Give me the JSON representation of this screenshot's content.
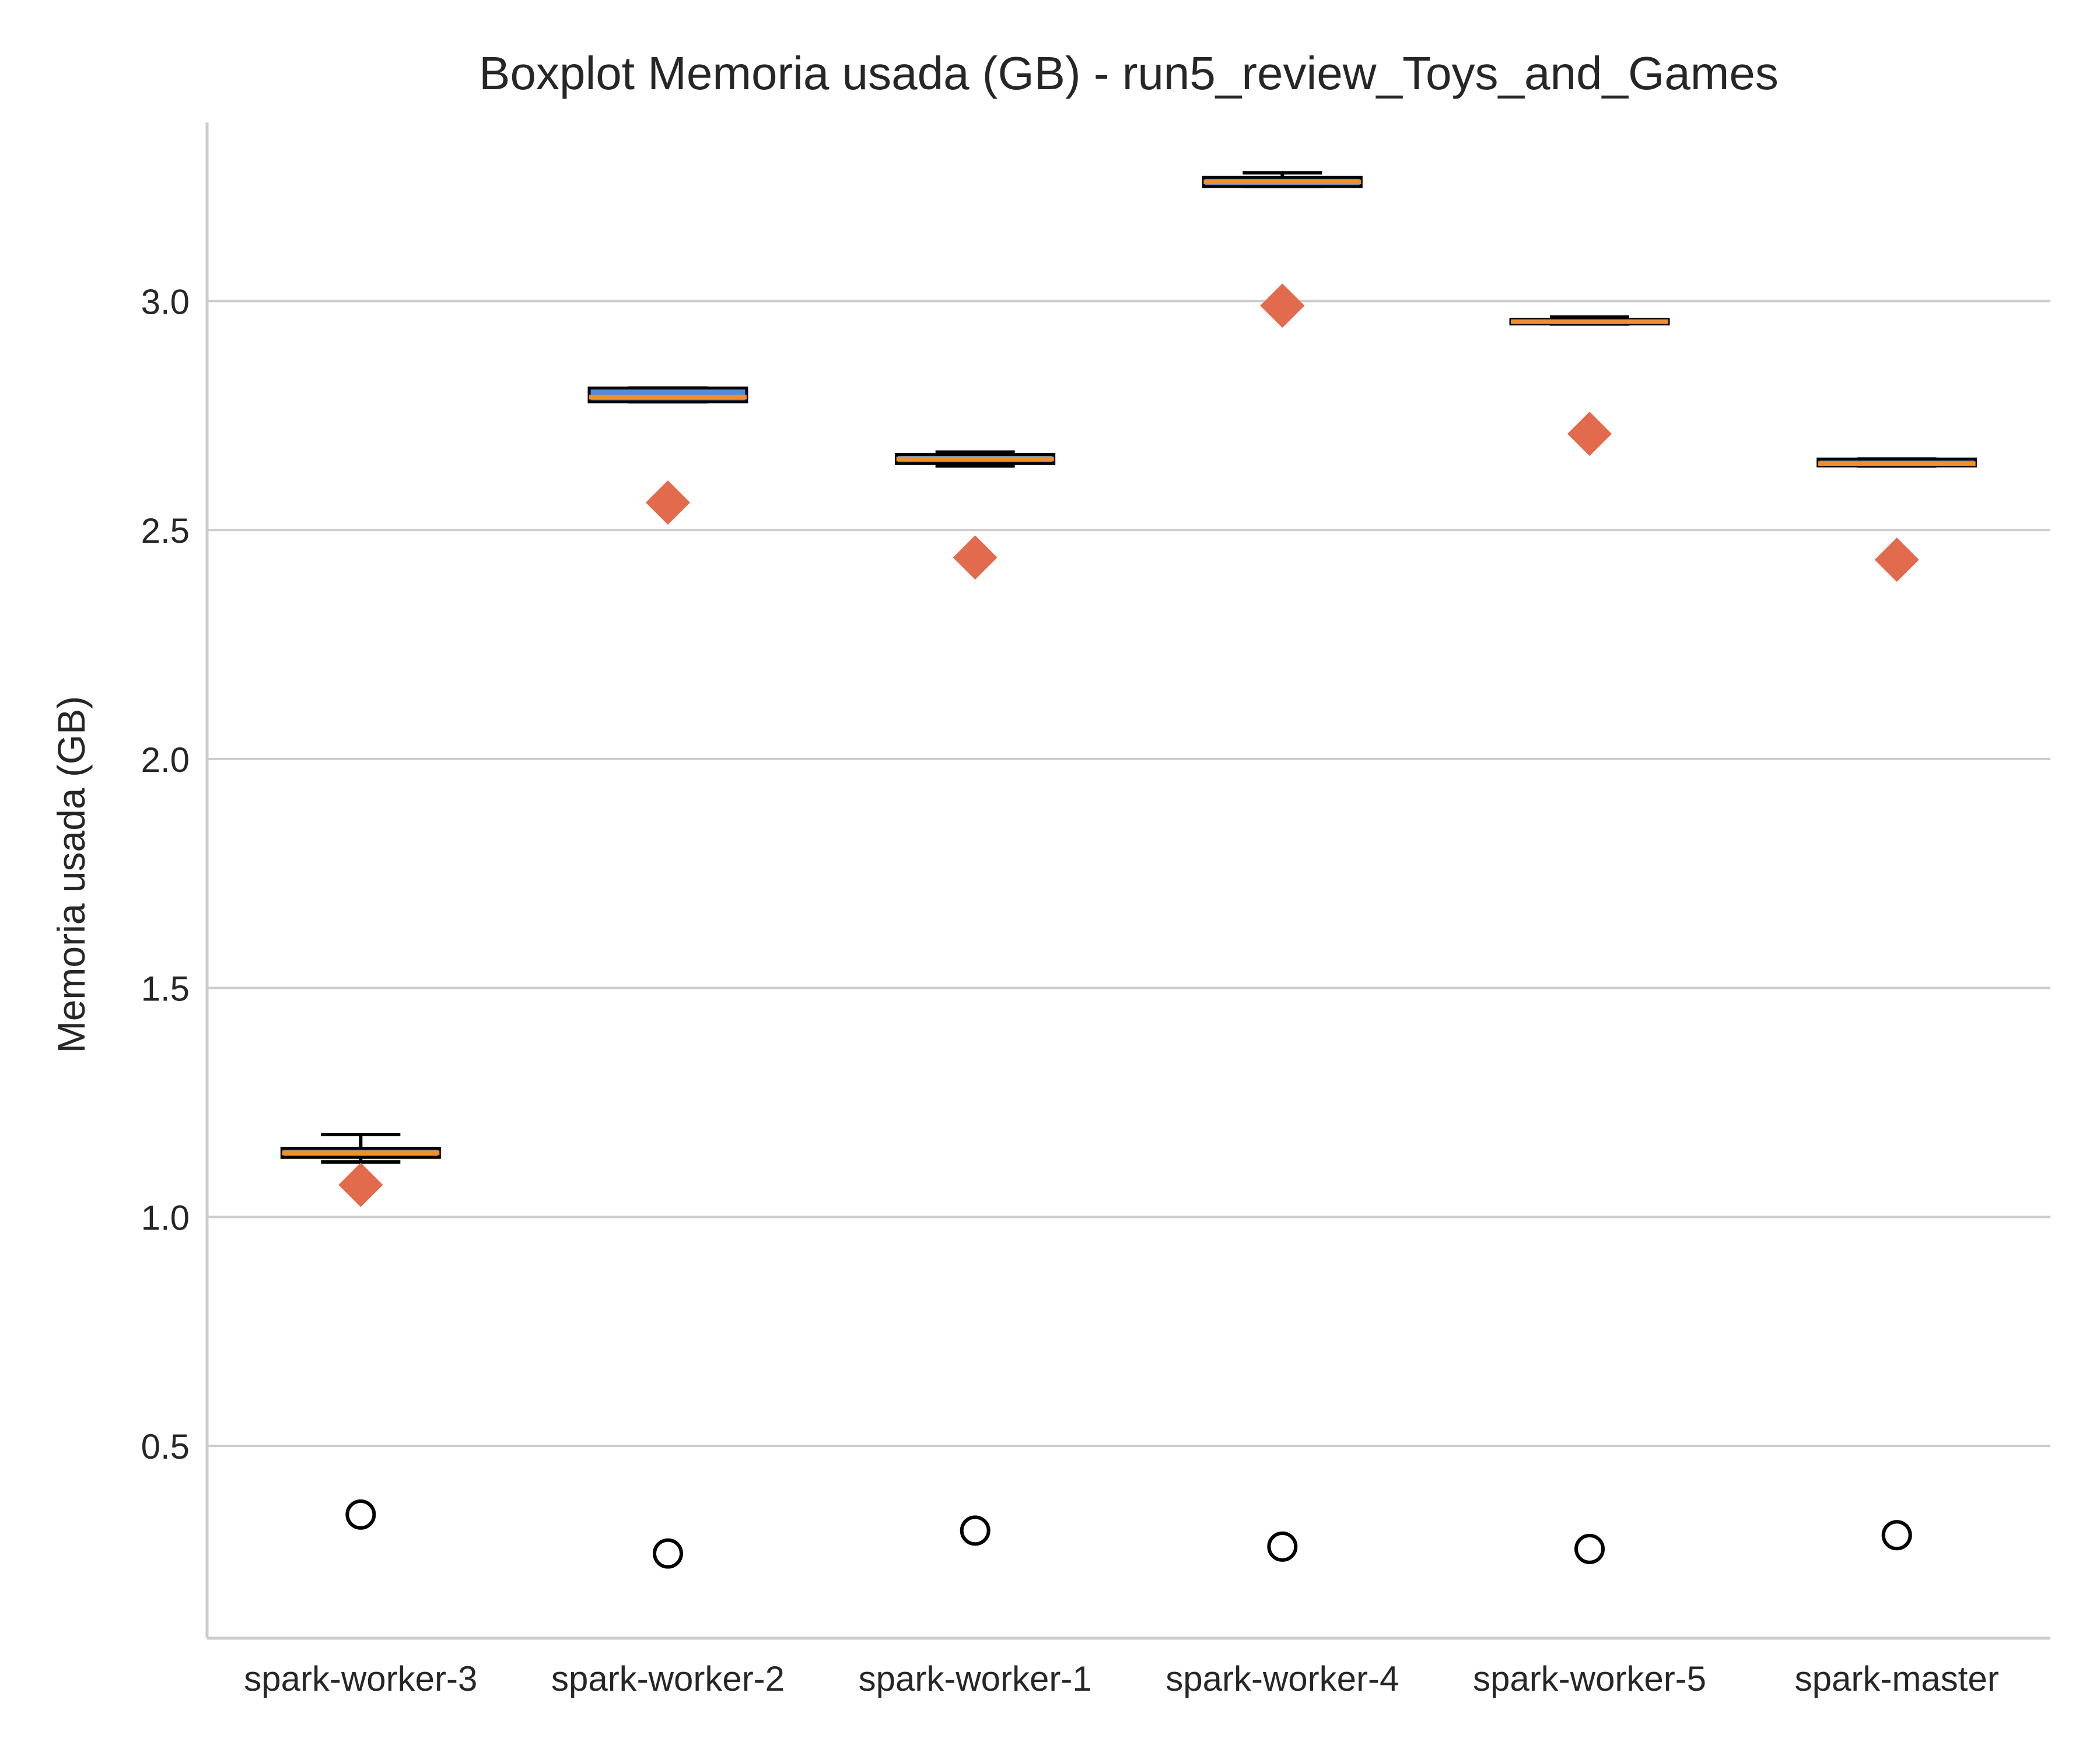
{
  "chart_data": {
    "type": "boxplot",
    "title": "Boxplot Memoria usada (GB) - run5_review_Toys_and_Games",
    "xlabel": "",
    "ylabel": "Memoria usada (GB)",
    "ylim": [
      0.08,
      3.39
    ],
    "yticks": [
      "0.5",
      "1.0",
      "1.5",
      "2.0",
      "2.5",
      "3.0"
    ],
    "grid": "horizontal",
    "categories": [
      "spark-worker-3",
      "spark-worker-2",
      "spark-worker-1",
      "spark-worker-4",
      "spark-worker-5",
      "spark-master"
    ],
    "boxes": [
      {
        "whisker_low": 1.12,
        "q1": 1.13,
        "median": 1.14,
        "q3": 1.15,
        "whisker_high": 1.18,
        "mean": 1.07,
        "outliers": [
          0.35
        ]
      },
      {
        "whisker_low": 2.78,
        "q1": 2.78,
        "median": 2.79,
        "q3": 2.81,
        "whisker_high": 2.81,
        "mean": 2.56,
        "outliers": [
          0.265
        ]
      },
      {
        "whisker_low": 2.64,
        "q1": 2.645,
        "median": 2.655,
        "q3": 2.665,
        "whisker_high": 2.67,
        "mean": 2.44,
        "outliers": [
          0.315
        ]
      },
      {
        "whisker_low": 3.25,
        "q1": 3.25,
        "median": 3.26,
        "q3": 3.27,
        "whisker_high": 3.28,
        "mean": 2.99,
        "outliers": [
          0.28
        ]
      },
      {
        "whisker_low": 2.95,
        "q1": 2.95,
        "median": 2.955,
        "q3": 2.96,
        "whisker_high": 2.965,
        "mean": 2.71,
        "outliers": [
          0.275
        ]
      },
      {
        "whisker_low": 2.64,
        "q1": 2.64,
        "median": 2.645,
        "q3": 2.655,
        "whisker_high": 2.655,
        "mean": 2.435,
        "outliers": [
          0.305
        ]
      }
    ],
    "colors": {
      "box_fill": "#4c8fd6",
      "median": "#f28e2b",
      "mean_marker": "#e26a4d",
      "grid": "#cccccc",
      "spine": "#cccccc"
    }
  }
}
